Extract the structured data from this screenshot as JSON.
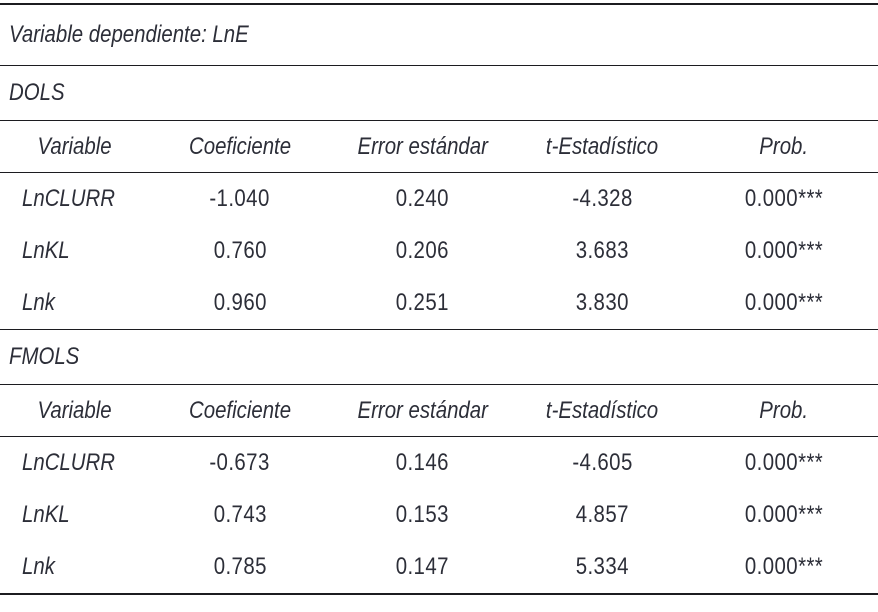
{
  "table": {
    "dependent_label": "Variable dependiente: LnE",
    "colors": {
      "text": "#2c2e38",
      "rule": "#1c1c20",
      "background": "#ffffff"
    },
    "sections": [
      {
        "name": "DOLS",
        "columns": [
          "Variable",
          "Coeficiente",
          "Error estándar",
          "t-Estadístico",
          "Prob."
        ],
        "rows": [
          {
            "variable": "LnCLURR",
            "coefficient": "-1.040",
            "std_error": "0.240",
            "t_statistic": "-4.328",
            "prob": "0.000***"
          },
          {
            "variable": "LnKL",
            "coefficient": "0.760",
            "std_error": "0.206",
            "t_statistic": "3.683",
            "prob": "0.000***"
          },
          {
            "variable": "Lnk",
            "coefficient": "0.960",
            "std_error": "0.251",
            "t_statistic": "3.830",
            "prob": "0.000***"
          }
        ]
      },
      {
        "name": "FMOLS",
        "columns": [
          "Variable",
          "Coeficiente",
          "Error estándar",
          "t-Estadístico",
          "Prob."
        ],
        "rows": [
          {
            "variable": "LnCLURR",
            "coefficient": "-0.673",
            "std_error": "0.146",
            "t_statistic": "-4.605",
            "prob": "0.000***"
          },
          {
            "variable": "LnKL",
            "coefficient": "0.743",
            "std_error": "0.153",
            "t_statistic": "4.857",
            "prob": "0.000***"
          },
          {
            "variable": "Lnk",
            "coefficient": "0.785",
            "std_error": "0.147",
            "t_statistic": "5.334",
            "prob": "0.000***"
          }
        ]
      }
    ]
  }
}
